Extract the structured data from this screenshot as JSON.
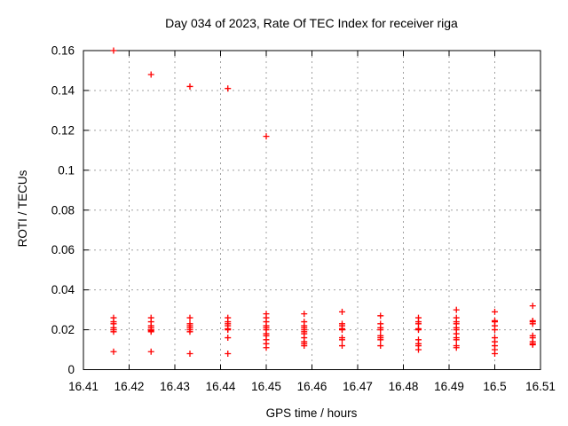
{
  "window": {
    "background": "#ffffff",
    "border_color": "#000000",
    "text_color": "#000000"
  },
  "chart_data": {
    "type": "scatter",
    "title": "Day 034 of 2023, Rate Of TEC Index for receiver riga",
    "xlabel": "GPS time / hours",
    "ylabel": "ROTI / TECUs",
    "xlim": [
      16.41,
      16.51
    ],
    "ylim": [
      0,
      0.16
    ],
    "grid": true,
    "legend": "none",
    "marker": "plus",
    "marker_color": "#ff0000",
    "grid_color": "#a0a0a0",
    "xticks": [
      {
        "v": 16.41,
        "label": "16.41"
      },
      {
        "v": 16.42,
        "label": "16.42"
      },
      {
        "v": 16.43,
        "label": "16.43"
      },
      {
        "v": 16.44,
        "label": "16.44"
      },
      {
        "v": 16.45,
        "label": "16.45"
      },
      {
        "v": 16.46,
        "label": "16.46"
      },
      {
        "v": 16.47,
        "label": "16.47"
      },
      {
        "v": 16.48,
        "label": "16.48"
      },
      {
        "v": 16.49,
        "label": "16.49"
      },
      {
        "v": 16.5,
        "label": "16.5"
      },
      {
        "v": 16.51,
        "label": "16.51"
      }
    ],
    "yticks": [
      {
        "v": 0,
        "label": "0"
      },
      {
        "v": 0.02,
        "label": "0.02"
      },
      {
        "v": 0.04,
        "label": "0.04"
      },
      {
        "v": 0.06,
        "label": "0.06"
      },
      {
        "v": 0.08,
        "label": "0.08"
      },
      {
        "v": 0.1,
        "label": "0.1"
      },
      {
        "v": 0.12,
        "label": "0.12"
      },
      {
        "v": 0.14,
        "label": "0.14"
      },
      {
        "v": 0.16,
        "label": "0.16"
      }
    ],
    "series": [
      {
        "name": "ROTI",
        "points": [
          [
            16.4166,
            0.16
          ],
          [
            16.4166,
            0.026
          ],
          [
            16.4166,
            0.024
          ],
          [
            16.4166,
            0.023
          ],
          [
            16.4166,
            0.021
          ],
          [
            16.4166,
            0.02
          ],
          [
            16.4166,
            0.019
          ],
          [
            16.4166,
            0.009
          ],
          [
            16.4248,
            0.148
          ],
          [
            16.4248,
            0.026
          ],
          [
            16.4248,
            0.024
          ],
          [
            16.4248,
            0.022
          ],
          [
            16.4248,
            0.021
          ],
          [
            16.4248,
            0.02
          ],
          [
            16.4248,
            0.0195
          ],
          [
            16.4248,
            0.019
          ],
          [
            16.4248,
            0.009
          ],
          [
            16.4333,
            0.142
          ],
          [
            16.4333,
            0.026
          ],
          [
            16.4333,
            0.023
          ],
          [
            16.4333,
            0.022
          ],
          [
            16.4333,
            0.021
          ],
          [
            16.4333,
            0.02
          ],
          [
            16.4333,
            0.019
          ],
          [
            16.4333,
            0.008
          ],
          [
            16.4416,
            0.141
          ],
          [
            16.4416,
            0.026
          ],
          [
            16.4416,
            0.024
          ],
          [
            16.4416,
            0.023
          ],
          [
            16.4416,
            0.022
          ],
          [
            16.4416,
            0.0205
          ],
          [
            16.4416,
            0.02
          ],
          [
            16.4416,
            0.016
          ],
          [
            16.4416,
            0.008
          ],
          [
            16.45,
            0.117
          ],
          [
            16.45,
            0.028
          ],
          [
            16.45,
            0.026
          ],
          [
            16.45,
            0.024
          ],
          [
            16.45,
            0.022
          ],
          [
            16.45,
            0.021
          ],
          [
            16.45,
            0.02
          ],
          [
            16.45,
            0.018
          ],
          [
            16.45,
            0.017
          ],
          [
            16.45,
            0.015
          ],
          [
            16.45,
            0.013
          ],
          [
            16.45,
            0.011
          ],
          [
            16.4583,
            0.028
          ],
          [
            16.4583,
            0.024
          ],
          [
            16.4583,
            0.022
          ],
          [
            16.4583,
            0.021
          ],
          [
            16.4583,
            0.02
          ],
          [
            16.4583,
            0.019
          ],
          [
            16.4583,
            0.018
          ],
          [
            16.4583,
            0.016
          ],
          [
            16.4583,
            0.014
          ],
          [
            16.4583,
            0.013
          ],
          [
            16.4583,
            0.012
          ],
          [
            16.4666,
            0.029
          ],
          [
            16.4666,
            0.023
          ],
          [
            16.4666,
            0.022
          ],
          [
            16.4666,
            0.0205
          ],
          [
            16.4666,
            0.02
          ],
          [
            16.4666,
            0.016
          ],
          [
            16.4666,
            0.015
          ],
          [
            16.4666,
            0.012
          ],
          [
            16.475,
            0.027
          ],
          [
            16.475,
            0.023
          ],
          [
            16.475,
            0.021
          ],
          [
            16.475,
            0.02
          ],
          [
            16.475,
            0.017
          ],
          [
            16.475,
            0.016
          ],
          [
            16.475,
            0.015
          ],
          [
            16.475,
            0.012
          ],
          [
            16.4833,
            0.026
          ],
          [
            16.4833,
            0.024
          ],
          [
            16.4833,
            0.023
          ],
          [
            16.4833,
            0.0205
          ],
          [
            16.4833,
            0.02
          ],
          [
            16.4833,
            0.015
          ],
          [
            16.4833,
            0.013
          ],
          [
            16.4833,
            0.012
          ],
          [
            16.4833,
            0.01
          ],
          [
            16.4916,
            0.03
          ],
          [
            16.4916,
            0.026
          ],
          [
            16.4916,
            0.024
          ],
          [
            16.4916,
            0.023
          ],
          [
            16.4916,
            0.021
          ],
          [
            16.4916,
            0.02
          ],
          [
            16.4916,
            0.018
          ],
          [
            16.4916,
            0.016
          ],
          [
            16.4916,
            0.015
          ],
          [
            16.4916,
            0.012
          ],
          [
            16.4916,
            0.011
          ],
          [
            16.5,
            0.029
          ],
          [
            16.5,
            0.0245
          ],
          [
            16.5,
            0.024
          ],
          [
            16.5,
            0.022
          ],
          [
            16.5,
            0.02
          ],
          [
            16.5,
            0.016
          ],
          [
            16.5,
            0.014
          ],
          [
            16.5,
            0.012
          ],
          [
            16.5,
            0.01
          ],
          [
            16.5,
            0.008
          ],
          [
            16.5083,
            0.032
          ],
          [
            16.5083,
            0.0245
          ],
          [
            16.5083,
            0.024
          ],
          [
            16.5083,
            0.023
          ],
          [
            16.5083,
            0.017
          ],
          [
            16.5083,
            0.016
          ],
          [
            16.5083,
            0.014
          ],
          [
            16.5083,
            0.013
          ],
          [
            16.5083,
            0.0125
          ]
        ]
      }
    ]
  }
}
